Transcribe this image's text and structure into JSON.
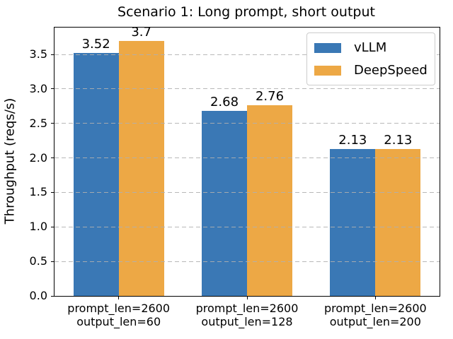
{
  "chart_data": {
    "type": "bar",
    "title": "Scenario 1: Long prompt, short output",
    "xlabel": "",
    "ylabel": "Throughput (reqs/s)",
    "categories": [
      "prompt_len=2600\noutput_len=60",
      "prompt_len=2600\noutput_len=128",
      "prompt_len=2600\noutput_len=200"
    ],
    "series": [
      {
        "name": "vLLM",
        "color": "#3a78b5",
        "values": [
          3.52,
          2.68,
          2.13
        ],
        "value_labels": [
          "3.52",
          "2.68",
          "2.13"
        ]
      },
      {
        "name": "DeepSpeed",
        "color": "#eda845",
        "values": [
          3.7,
          2.76,
          2.13
        ],
        "value_labels": [
          "3.7",
          "2.76",
          "2.13"
        ]
      }
    ],
    "ylim": [
      0,
      3.89
    ],
    "yticks": [
      0.0,
      0.5,
      1.0,
      1.5,
      2.0,
      2.5,
      3.0,
      3.5
    ],
    "ytick_labels": [
      "0.0",
      "0.5",
      "1.0",
      "1.5",
      "2.0",
      "2.5",
      "3.0",
      "3.5"
    ],
    "grid": "horizontal-dashed-over-bars",
    "grid_color": "#b0b0b0",
    "legend_position": "upper right"
  }
}
